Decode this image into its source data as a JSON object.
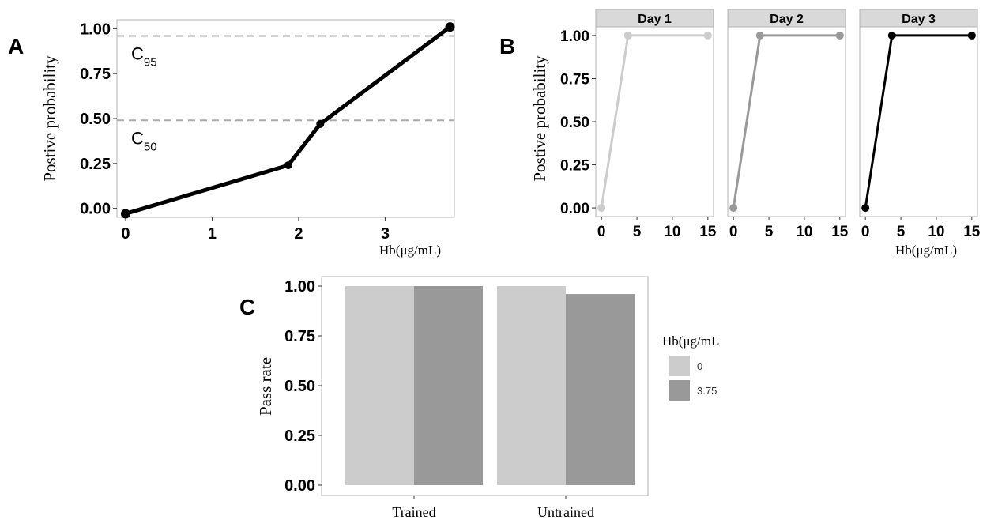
{
  "colors": {
    "light_gray": "#cccccc",
    "mid_gray": "#999999",
    "black": "#000000",
    "dashed_gray": "#aaaaaa",
    "strip_gray": "#d9d9d9",
    "panel_border": "#b3b3b3"
  },
  "chart_data": [
    {
      "panel": "A",
      "type": "line",
      "ylabel": "Postive probability",
      "xlabel": "Hb(μg/mL)",
      "xlim": [
        -0.1,
        3.8
      ],
      "ylim": [
        -0.05,
        1.05
      ],
      "x_ticks": [
        0,
        1,
        2,
        3
      ],
      "y_ticks": [
        "0.00",
        "0.25",
        "0.50",
        "0.75",
        "1.00"
      ],
      "series": [
        {
          "x": [
            0,
            1.88,
            2.25,
            3.75
          ],
          "y": [
            -0.03,
            0.24,
            0.47,
            1.01
          ]
        }
      ],
      "reference_lines": [
        {
          "y": 0.96,
          "label": "C",
          "sub": "95",
          "style": "dashed"
        },
        {
          "y": 0.49,
          "label": "C",
          "sub": "50",
          "style": "dashed"
        }
      ],
      "grid": false
    },
    {
      "panel": "B",
      "type": "line",
      "ylabel": "Postive probability",
      "xlabel": "Hb(μg/mL)",
      "xlim": [
        -0.8,
        15.8
      ],
      "ylim": [
        -0.05,
        1.05
      ],
      "x_ticks": [
        0,
        5,
        10,
        15
      ],
      "y_ticks": [
        "0.00",
        "0.25",
        "0.50",
        "0.75",
        "1.00"
      ],
      "facets": [
        {
          "strip": "Day 1",
          "color": "#cccccc",
          "x": [
            0,
            3.75,
            15
          ],
          "y": [
            0,
            1,
            1
          ]
        },
        {
          "strip": "Day 2",
          "color": "#999999",
          "x": [
            0,
            3.75,
            15
          ],
          "y": [
            0,
            1,
            1
          ]
        },
        {
          "strip": "Day 3",
          "color": "#000000",
          "x": [
            0,
            3.75,
            15
          ],
          "y": [
            0,
            1,
            1
          ]
        }
      ],
      "grid": false
    },
    {
      "panel": "C",
      "type": "bar",
      "ylabel": "Pass rate",
      "categories": [
        "Trained",
        "Untrained"
      ],
      "ylim": [
        0,
        1.0
      ],
      "y_ticks": [
        "0.00",
        "0.25",
        "0.50",
        "0.75",
        "1.00"
      ],
      "legend_title": "Hb(μg/mL",
      "legend_position": "right",
      "series": [
        {
          "name": "0",
          "color": "#cccccc",
          "values": [
            1.0,
            1.0
          ]
        },
        {
          "name": "3.75",
          "color": "#999999",
          "values": [
            1.0,
            0.96
          ]
        }
      ],
      "grid": false
    }
  ]
}
